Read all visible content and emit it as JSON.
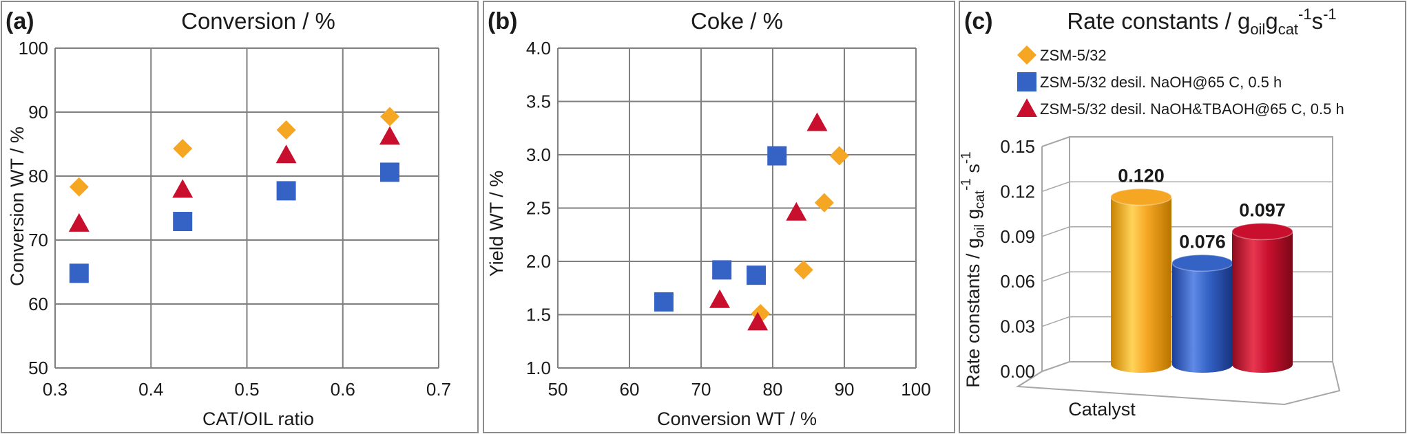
{
  "colors": {
    "zsm": "#f5a623",
    "naoh": "#3462c5",
    "tbaoh": "#c8102e",
    "grid": "#7f7f7f"
  },
  "chart_data": [
    {
      "panel": "(a)",
      "type": "scatter",
      "title": "Conversion / %",
      "xlabel": "CAT/OIL ratio",
      "ylabel": "Conversion WT / %",
      "xlim": [
        0.3,
        0.7
      ],
      "ylim": [
        50,
        100
      ],
      "xticks": [
        0.3,
        0.4,
        0.5,
        0.6,
        0.7
      ],
      "xtick_labels": [
        "0.3",
        "0.4",
        "0.5",
        "0.6",
        "0.7"
      ],
      "yticks": [
        50,
        60,
        70,
        80,
        90,
        100
      ],
      "ytick_labels": [
        "50",
        "60",
        "70",
        "80",
        "90",
        "100"
      ],
      "grid": true,
      "series": [
        {
          "name": "ZSM-5/32",
          "marker": "diamond",
          "color": "#f5a623",
          "points": [
            [
              0.325,
              78.3
            ],
            [
              0.433,
              84.3
            ],
            [
              0.541,
              87.2
            ],
            [
              0.649,
              89.3
            ]
          ]
        },
        {
          "name": "ZSM-5/32 desil. NaOH@65 C, 0.5 h",
          "marker": "square",
          "color": "#3462c5",
          "points": [
            [
              0.325,
              64.8
            ],
            [
              0.433,
              72.9
            ],
            [
              0.541,
              77.7
            ],
            [
              0.649,
              80.6
            ]
          ]
        },
        {
          "name": "ZSM-5/32 desil. NaOH&TBAOH@65 C, 0.5 h",
          "marker": "triangle",
          "color": "#c8102e",
          "points": [
            [
              0.325,
              72.6
            ],
            [
              0.433,
              77.9
            ],
            [
              0.541,
              83.3
            ],
            [
              0.649,
              86.2
            ]
          ]
        }
      ]
    },
    {
      "panel": "(b)",
      "type": "scatter",
      "title": "Coke / %",
      "xlabel": "Conversion WT / %",
      "ylabel": "Yield WT / %",
      "xlim": [
        50,
        100
      ],
      "ylim": [
        1.0,
        4.0
      ],
      "xticks": [
        50,
        60,
        70,
        80,
        90,
        100
      ],
      "xtick_labels": [
        "50",
        "60",
        "70",
        "80",
        "90",
        "100"
      ],
      "yticks": [
        1.0,
        1.5,
        2.0,
        2.5,
        3.0,
        3.5,
        4.0
      ],
      "ytick_labels": [
        "1.0",
        "1.5",
        "2.0",
        "2.5",
        "3.0",
        "3.5",
        "4.0"
      ],
      "grid": true,
      "series": [
        {
          "name": "ZSM-5/32",
          "marker": "diamond",
          "color": "#f5a623",
          "points": [
            [
              78.3,
              1.51
            ],
            [
              84.3,
              1.92
            ],
            [
              87.2,
              2.55
            ],
            [
              89.3,
              2.99
            ]
          ]
        },
        {
          "name": "ZSM-5/32 desil. NaOH@65 C, 0.5 h",
          "marker": "square",
          "color": "#3462c5",
          "points": [
            [
              64.8,
              1.62
            ],
            [
              72.9,
              1.92
            ],
            [
              77.7,
              1.87
            ],
            [
              80.6,
              2.99
            ]
          ]
        },
        {
          "name": "ZSM-5/32 desil. NaOH&TBAOH@65 C, 0.5 h",
          "marker": "triangle",
          "color": "#c8102e",
          "points": [
            [
              72.6,
              1.64
            ],
            [
              77.9,
              1.43
            ],
            [
              83.3,
              2.46
            ],
            [
              86.2,
              3.3
            ]
          ]
        }
      ]
    },
    {
      "panel": "(c)",
      "type": "bar",
      "title_main": "Rate constants / g",
      "title_sub1": "oil",
      "title_mid": "g",
      "title_sub2": "cat",
      "title_sup1": "-1",
      "title_s": "s",
      "title_sup2": "-1",
      "ylabel_main": "Rate constants / g",
      "ylabel_sub1": "oil",
      "ylabel_mid": " g",
      "ylabel_sub2": "cat",
      "ylabel_sup1": "-1",
      "ylabel_s": " s",
      "ylabel_sup2": "-1",
      "xlabel": "Catalyst",
      "ylim": [
        0.0,
        0.15
      ],
      "yticks": [
        0.0,
        0.03,
        0.06,
        0.09,
        0.12,
        0.15
      ],
      "ytick_labels": [
        "0.00",
        "0.03",
        "0.06",
        "0.09",
        "0.12",
        "0.15"
      ],
      "grid": true,
      "legend": [
        {
          "label": "ZSM-5/32",
          "marker": "diamond",
          "color": "#f5a623"
        },
        {
          "label": "ZSM-5/32 desil. NaOH@65 C, 0.5 h",
          "marker": "square",
          "color": "#3462c5"
        },
        {
          "label": "ZSM-5/32 desil. NaOH&TBAOH@65 C, 0.5 h",
          "marker": "triangle",
          "color": "#c8102e"
        }
      ],
      "bars": [
        {
          "name": "ZSM-5/32",
          "value": 0.12,
          "label": "0.120",
          "color": "#f5a623"
        },
        {
          "name": "ZSM-5/32 desil. NaOH@65 C, 0.5 h",
          "value": 0.076,
          "label": "0.076",
          "color": "#3462c5"
        },
        {
          "name": "ZSM-5/32 desil. NaOH&TBAOH@65 C, 0.5 h",
          "value": 0.097,
          "label": "0.097",
          "color": "#c8102e"
        }
      ]
    }
  ]
}
